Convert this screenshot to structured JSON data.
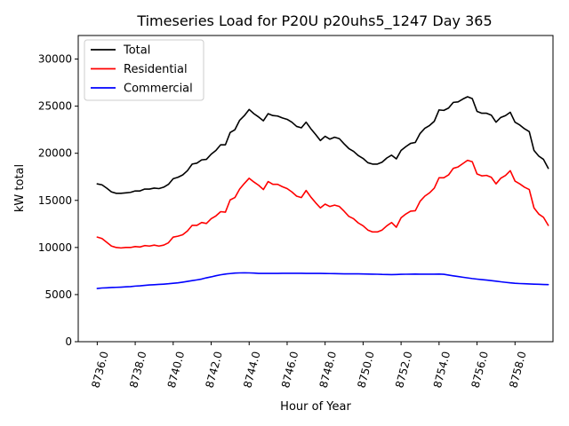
{
  "chart_data": {
    "type": "line",
    "title": "Timeseries Load for P20U p20uhs5_1247  Day 365",
    "xlabel": "Hour of Year",
    "ylabel": "kW total",
    "xlim": [
      8735.0,
      8760.0
    ],
    "ylim": [
      0,
      32500
    ],
    "xticks": [
      8736,
      8738,
      8740,
      8742,
      8744,
      8746,
      8748,
      8750,
      8752,
      8754,
      8756,
      8758
    ],
    "xtick_labels": [
      "8736.0",
      "8738.0",
      "8740.0",
      "8742.0",
      "8744.0",
      "8746.0",
      "8748.0",
      "8750.0",
      "8752.0",
      "8754.0",
      "8756.0",
      "8758.0"
    ],
    "yticks": [
      0,
      5000,
      10000,
      15000,
      20000,
      25000,
      30000
    ],
    "ytick_labels": [
      "0",
      "5000",
      "10000",
      "15000",
      "20000",
      "25000",
      "30000"
    ],
    "grid": false,
    "legend_position": "top-left",
    "x": [
      8736.0,
      8736.25,
      8736.5,
      8736.75,
      8737.0,
      8737.25,
      8737.5,
      8737.75,
      8738.0,
      8738.25,
      8738.5,
      8738.75,
      8739.0,
      8739.25,
      8739.5,
      8739.75,
      8740.0,
      8740.25,
      8740.5,
      8740.75,
      8741.0,
      8741.25,
      8741.5,
      8741.75,
      8742.0,
      8742.25,
      8742.5,
      8742.75,
      8743.0,
      8743.25,
      8743.5,
      8743.75,
      8744.0,
      8744.25,
      8744.5,
      8744.75,
      8745.0,
      8745.25,
      8745.5,
      8745.75,
      8746.0,
      8746.25,
      8746.5,
      8746.75,
      8747.0,
      8747.25,
      8747.5,
      8747.75,
      8748.0,
      8748.25,
      8748.5,
      8748.75,
      8749.0,
      8749.25,
      8749.5,
      8749.75,
      8750.0,
      8750.25,
      8750.5,
      8750.75,
      8751.0,
      8751.25,
      8751.5,
      8751.75,
      8752.0,
      8752.25,
      8752.5,
      8752.75,
      8753.0,
      8753.25,
      8753.5,
      8753.75,
      8754.0,
      8754.25,
      8754.5,
      8754.75,
      8755.0,
      8755.25,
      8755.5,
      8755.75,
      8756.0,
      8756.25,
      8756.5,
      8756.75,
      8757.0,
      8757.25,
      8757.5,
      8757.75,
      8758.0,
      8758.25,
      8758.5,
      8758.75,
      8759.0,
      8759.25,
      8759.5,
      8759.75
    ],
    "series": [
      {
        "name": "Total",
        "color": "#000000",
        "values": [
          16750,
          16650,
          16300,
          15900,
          15750,
          15750,
          15800,
          15850,
          16000,
          16000,
          16200,
          16200,
          16300,
          16250,
          16400,
          16700,
          17300,
          17450,
          17700,
          18150,
          18850,
          18950,
          19300,
          19350,
          19900,
          20300,
          20900,
          20900,
          22200,
          22500,
          23500,
          24000,
          24650,
          24200,
          23850,
          23450,
          24200,
          24000,
          23950,
          23750,
          23600,
          23300,
          22850,
          22700,
          23300,
          22600,
          22000,
          21350,
          21800,
          21500,
          21700,
          21550,
          21000,
          20500,
          20200,
          19750,
          19450,
          19000,
          18850,
          18850,
          19050,
          19500,
          19800,
          19400,
          20300,
          20700,
          21050,
          21150,
          22100,
          22650,
          22950,
          23400,
          24600,
          24550,
          24800,
          25400,
          25450,
          25750,
          26000,
          25800,
          24450,
          24250,
          24250,
          24050,
          23300,
          23800,
          24000,
          24350,
          23300,
          23000,
          22600,
          22300,
          20300,
          19700,
          19350,
          18400
        ]
      },
      {
        "name": "Residential",
        "color": "#ff0000",
        "values": [
          11100,
          10950,
          10550,
          10150,
          10000,
          9950,
          10000,
          10000,
          10100,
          10050,
          10200,
          10150,
          10250,
          10150,
          10250,
          10500,
          11100,
          11200,
          11350,
          11750,
          12350,
          12350,
          12650,
          12550,
          13050,
          13350,
          13800,
          13750,
          15050,
          15300,
          16200,
          16800,
          17350,
          16950,
          16600,
          16150,
          17000,
          16700,
          16700,
          16450,
          16250,
          15900,
          15450,
          15300,
          16050,
          15350,
          14750,
          14200,
          14600,
          14350,
          14500,
          14350,
          13850,
          13300,
          13050,
          12600,
          12300,
          11850,
          11650,
          11650,
          11850,
          12300,
          12650,
          12150,
          13150,
          13550,
          13850,
          13900,
          14900,
          15450,
          15800,
          16300,
          17400,
          17400,
          17700,
          18400,
          18550,
          18900,
          19250,
          19100,
          17800,
          17600,
          17650,
          17450,
          16750,
          17350,
          17650,
          18150,
          17050,
          16750,
          16400,
          16150,
          14200,
          13550,
          13200,
          12350
        ]
      },
      {
        "name": "Commercial",
        "color": "#0000ff",
        "values": [
          5650,
          5700,
          5720,
          5750,
          5770,
          5790,
          5820,
          5850,
          5900,
          5930,
          5980,
          6020,
          6050,
          6080,
          6110,
          6150,
          6200,
          6250,
          6320,
          6400,
          6480,
          6560,
          6650,
          6780,
          6880,
          7000,
          7100,
          7180,
          7230,
          7280,
          7300,
          7310,
          7300,
          7280,
          7250,
          7250,
          7250,
          7250,
          7250,
          7260,
          7260,
          7260,
          7260,
          7260,
          7250,
          7250,
          7250,
          7250,
          7240,
          7230,
          7220,
          7210,
          7200,
          7200,
          7200,
          7200,
          7190,
          7180,
          7170,
          7160,
          7140,
          7130,
          7120,
          7130,
          7150,
          7160,
          7170,
          7180,
          7170,
          7170,
          7170,
          7170,
          7180,
          7150,
          7070,
          6990,
          6920,
          6840,
          6770,
          6700,
          6640,
          6590,
          6540,
          6480,
          6420,
          6360,
          6300,
          6250,
          6200,
          6170,
          6150,
          6130,
          6110,
          6090,
          6070,
          6060
        ]
      }
    ]
  }
}
